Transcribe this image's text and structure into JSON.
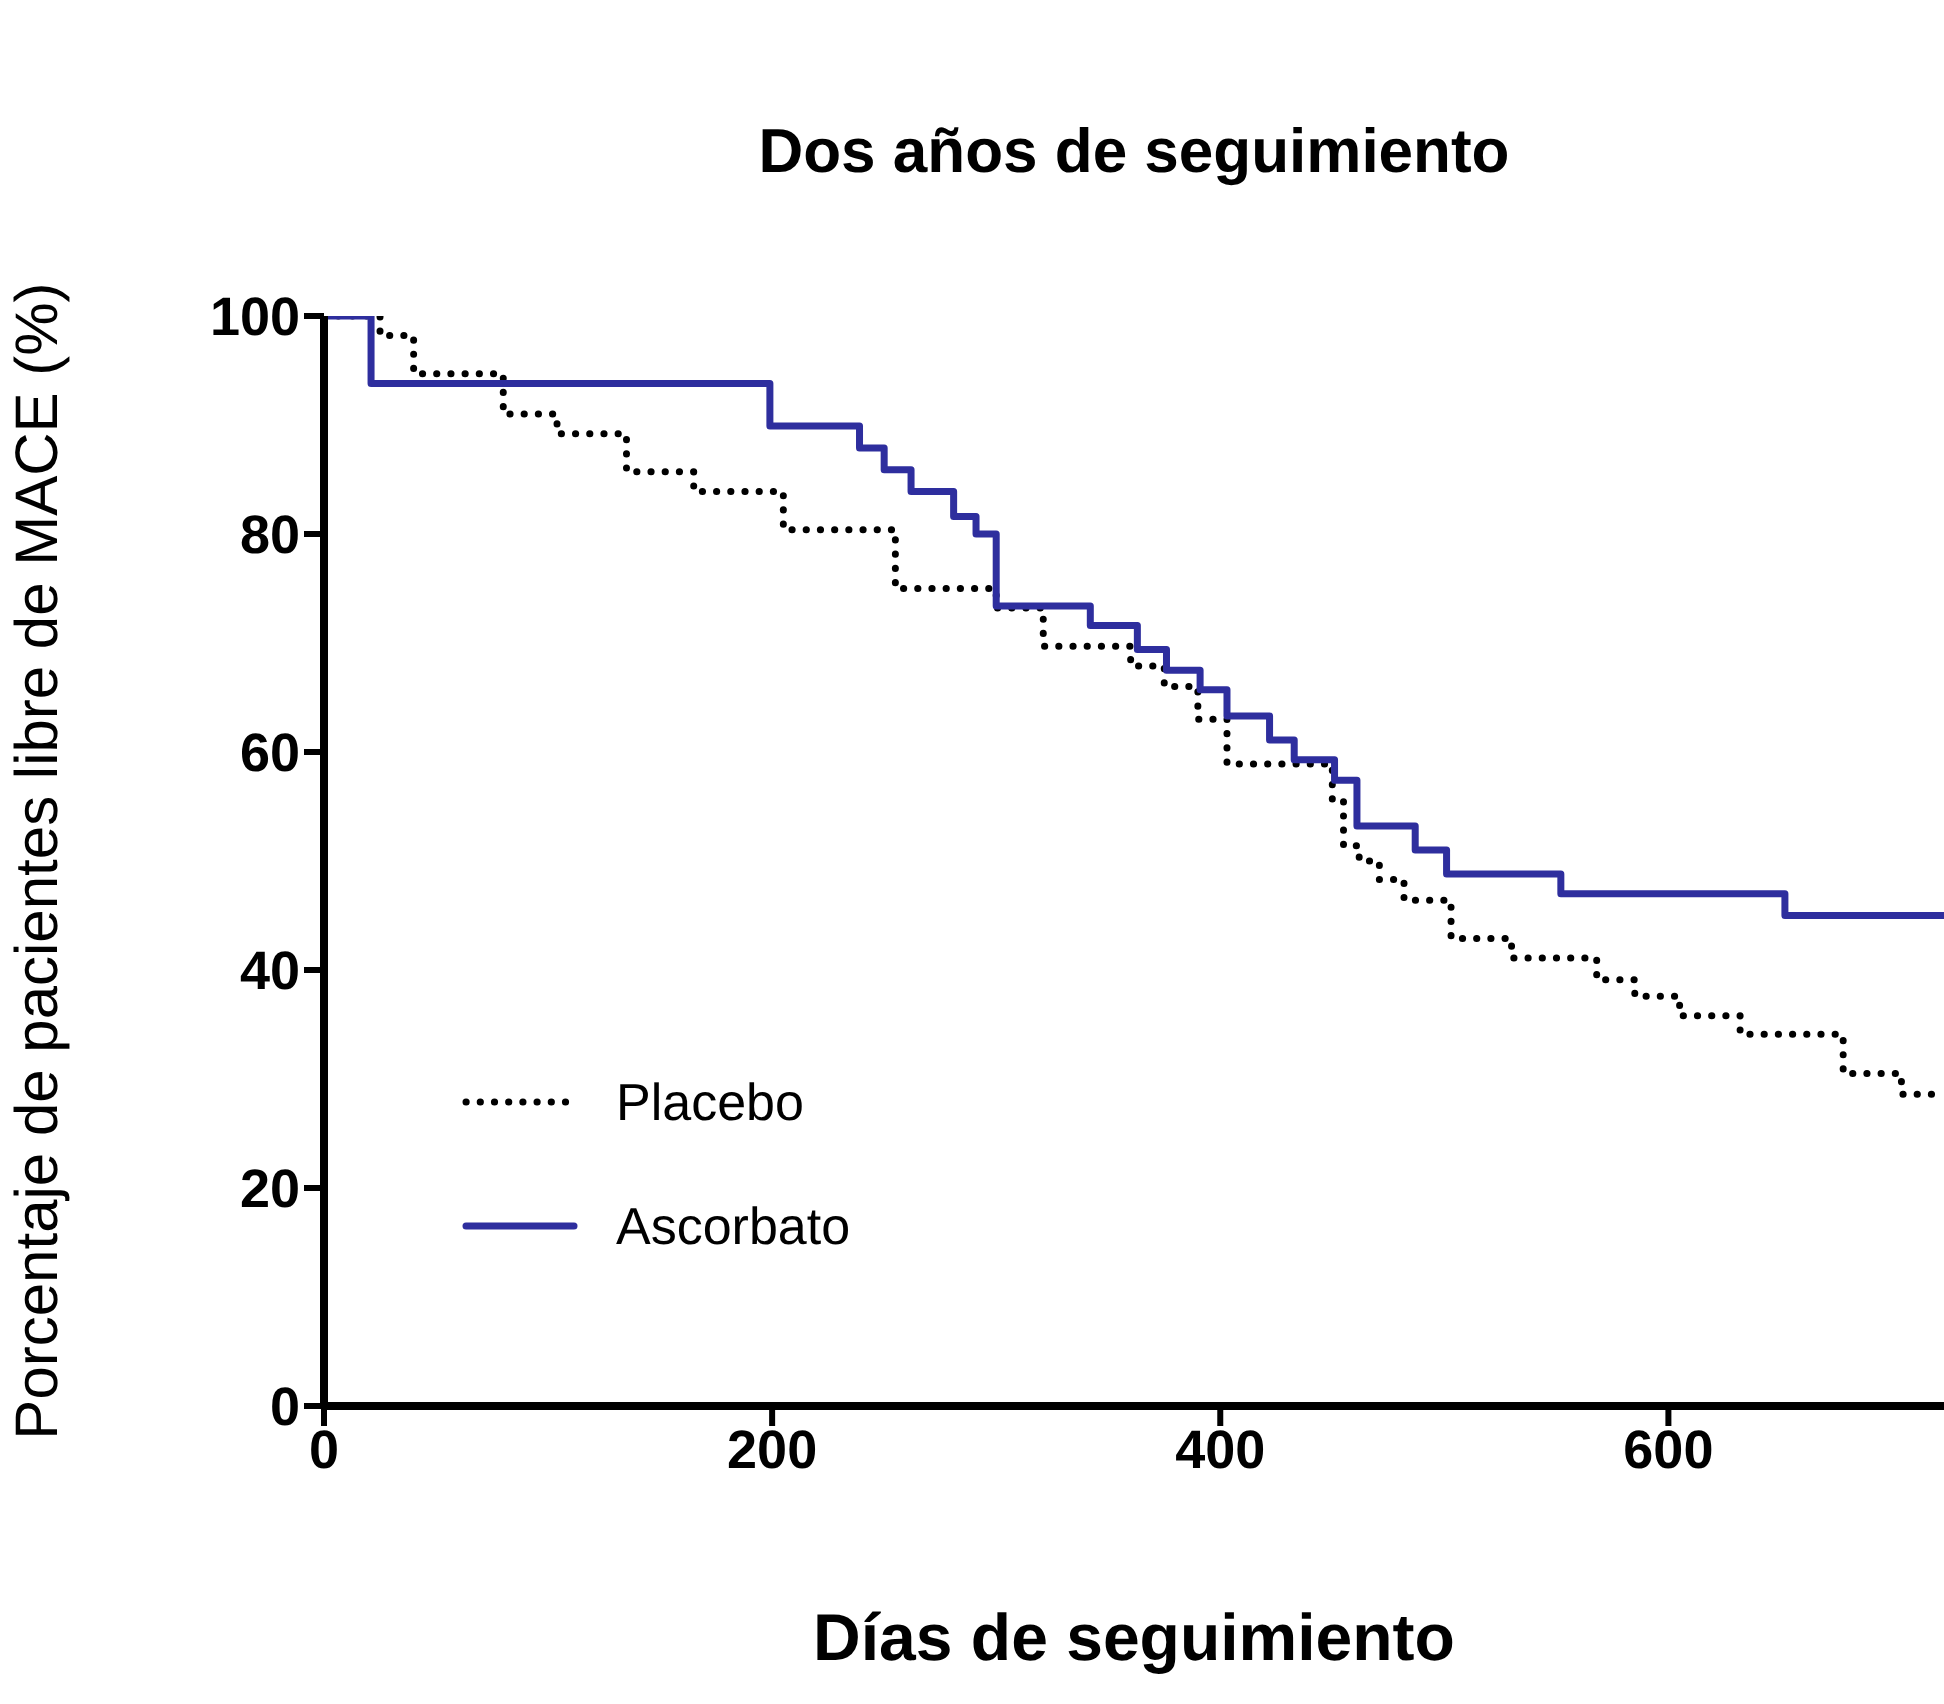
{
  "chart_data": {
    "type": "step",
    "title": "Dos años de seguimiento",
    "xlabel": "Días de seguimiento",
    "ylabel": "Porcentaje de pacientes libre de MACE (%)",
    "xlim": [
      0,
      723
    ],
    "xticks": [
      0,
      200,
      400,
      600
    ],
    "ylim": [
      0,
      100
    ],
    "yticks": [
      0,
      20,
      40,
      60,
      80,
      100
    ],
    "grid": false,
    "legend": "bottom left",
    "marker": "none",
    "series": [
      {
        "name": "Placebo",
        "color": "#000000",
        "line_style": "dotted",
        "x": [
          0,
          25,
          40,
          80,
          104,
          135,
          165,
          205,
          255,
          300,
          321,
          360,
          375,
          390,
          403,
          450,
          455,
          462,
          471,
          482,
          503,
          530,
          568,
          585,
          605,
          632,
          678,
          704,
          723
        ],
        "values": [
          100,
          98.2,
          94.7,
          91,
          89.2,
          85.7,
          83.9,
          80.4,
          75,
          73.2,
          69.7,
          67.9,
          66,
          63,
          58.9,
          55.6,
          51.4,
          50,
          48.3,
          46.4,
          42.9,
          41.1,
          39.1,
          37.6,
          35.8,
          34.1,
          30.5,
          28.6,
          28.6
        ]
      },
      {
        "name": "Ascorbato",
        "color": "#2e2e9e",
        "line_style": "solid",
        "x": [
          0,
          21,
          199,
          239,
          250,
          262,
          281,
          291,
          300,
          342,
          363,
          376,
          391,
          403,
          422,
          433,
          451,
          461,
          487,
          501,
          552,
          652,
          723
        ],
        "values": [
          100,
          93.8,
          89.9,
          87.9,
          85.9,
          83.9,
          81.6,
          80,
          73.4,
          71.6,
          69.4,
          67.5,
          65.7,
          63.3,
          61.1,
          59.3,
          57.4,
          53.2,
          51,
          48.8,
          47,
          45,
          45
        ]
      }
    ]
  }
}
